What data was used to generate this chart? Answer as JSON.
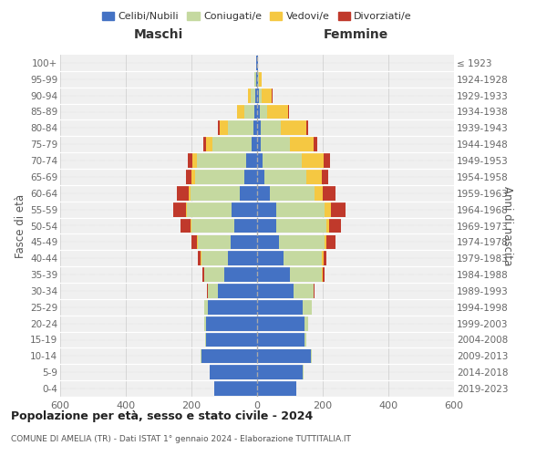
{
  "age_groups": [
    "0-4",
    "5-9",
    "10-14",
    "15-19",
    "20-24",
    "25-29",
    "30-34",
    "35-39",
    "40-44",
    "45-49",
    "50-54",
    "55-59",
    "60-64",
    "65-69",
    "70-74",
    "75-79",
    "80-84",
    "85-89",
    "90-94",
    "95-99",
    "100+"
  ],
  "birth_years": [
    "2019-2023",
    "2014-2018",
    "2009-2013",
    "2004-2008",
    "1999-2003",
    "1994-1998",
    "1989-1993",
    "1984-1988",
    "1979-1983",
    "1974-1978",
    "1969-1973",
    "1964-1968",
    "1959-1963",
    "1954-1958",
    "1949-1953",
    "1944-1948",
    "1939-1943",
    "1934-1938",
    "1929-1933",
    "1924-1928",
    "≤ 1923"
  ],
  "maschi": {
    "celibi": [
      130,
      145,
      170,
      155,
      155,
      150,
      120,
      100,
      90,
      80,
      70,
      78,
      52,
      38,
      32,
      18,
      12,
      8,
      5,
      3,
      2
    ],
    "coniugati": [
      0,
      0,
      1,
      2,
      5,
      10,
      30,
      60,
      80,
      100,
      130,
      135,
      152,
      152,
      150,
      118,
      78,
      32,
      15,
      4,
      1
    ],
    "vedovi": [
      0,
      0,
      0,
      0,
      0,
      0,
      0,
      1,
      1,
      2,
      3,
      5,
      5,
      10,
      15,
      20,
      25,
      20,
      8,
      2,
      0
    ],
    "divorziati": [
      0,
      0,
      0,
      0,
      0,
      0,
      2,
      5,
      10,
      18,
      30,
      38,
      35,
      18,
      15,
      8,
      5,
      2,
      1,
      0,
      0
    ]
  },
  "femmine": {
    "nubili": [
      120,
      140,
      165,
      145,
      145,
      140,
      110,
      100,
      80,
      68,
      58,
      58,
      38,
      22,
      18,
      12,
      10,
      8,
      5,
      3,
      2
    ],
    "coniugate": [
      0,
      1,
      2,
      5,
      10,
      28,
      62,
      98,
      118,
      138,
      152,
      148,
      138,
      128,
      118,
      88,
      62,
      22,
      10,
      3,
      1
    ],
    "vedove": [
      0,
      0,
      0,
      0,
      0,
      0,
      1,
      2,
      4,
      6,
      10,
      18,
      24,
      48,
      68,
      72,
      78,
      65,
      30,
      8,
      1
    ],
    "divorziate": [
      0,
      0,
      0,
      0,
      0,
      0,
      2,
      5,
      10,
      28,
      35,
      45,
      40,
      18,
      18,
      10,
      5,
      2,
      1,
      0,
      0
    ]
  },
  "colors": {
    "celibi": "#4472c4",
    "coniugati": "#c5d9a0",
    "vedovi": "#f5c842",
    "divorziati": "#c0392b"
  },
  "title": "Popolazione per età, sesso e stato civile - 2024",
  "subtitle": "COMUNE DI AMELIA (TR) - Dati ISTAT 1° gennaio 2024 - Elaborazione TUTTITALIA.IT",
  "xlabel_maschi": "Maschi",
  "xlabel_femmine": "Femmine",
  "ylabel_left": "Fasce di età",
  "ylabel_right": "Anni di nascita",
  "xlim": 600,
  "bg_color": "#f0f0f0",
  "legend_labels": [
    "Celibi/Nubili",
    "Coniugati/e",
    "Vedovi/e",
    "Divorziati/e"
  ]
}
